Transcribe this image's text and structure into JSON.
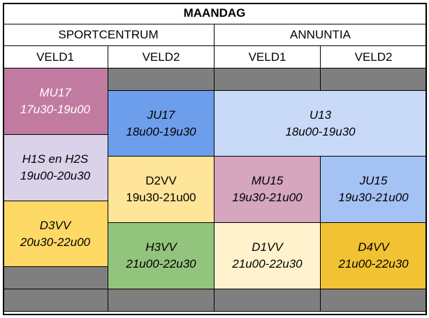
{
  "title": "MAANDAG",
  "locations": [
    "SPORTCENTRUM",
    "ANNUNTIA"
  ],
  "fields": [
    "VELD1",
    "VELD2",
    "VELD1",
    "VELD2"
  ],
  "blocks": [
    {
      "name": "MU17",
      "time": "17u30-19u00",
      "color": "#c27ba0",
      "italic": true,
      "white": true
    },
    {
      "name": "H1S en H2S",
      "time": "19u00-20u30",
      "color": "#d9d2e9",
      "italic": true,
      "white": false
    },
    {
      "name": "D3VV",
      "time": "20u30-22u00",
      "color": "#ffd966",
      "italic": true,
      "white": false
    },
    {
      "name": "JU17",
      "time": "18u00-19u30",
      "color": "#6d9eeb",
      "italic": true,
      "white": false
    },
    {
      "name": "D2VV",
      "time": "19u30-21u00",
      "color": "#ffe599",
      "italic": false,
      "white": false
    },
    {
      "name": "H3VV",
      "time": "21u00-22u30",
      "color": "#93c47d",
      "italic": true,
      "white": false
    },
    {
      "name": "U13",
      "time": "18u00-19u30",
      "color": "#c9daf8",
      "italic": true,
      "white": false
    },
    {
      "name": "MU15",
      "time": "19u30-21u00",
      "color": "#d5a6bd",
      "italic": true,
      "white": false
    },
    {
      "name": "JU15",
      "time": "19u30-21u00",
      "color": "#a4c2f4",
      "italic": true,
      "white": false
    },
    {
      "name": "D1VV",
      "time": "21u00-22u30",
      "color": "#fff2cc",
      "italic": true,
      "white": false
    },
    {
      "name": "D4VV",
      "time": "21u00-22u30",
      "color": "#f1c232",
      "italic": true,
      "white": false
    }
  ],
  "colors": {
    "empty": "#7f7f7f",
    "border": "#000000",
    "header_bg": "#ffffff"
  }
}
